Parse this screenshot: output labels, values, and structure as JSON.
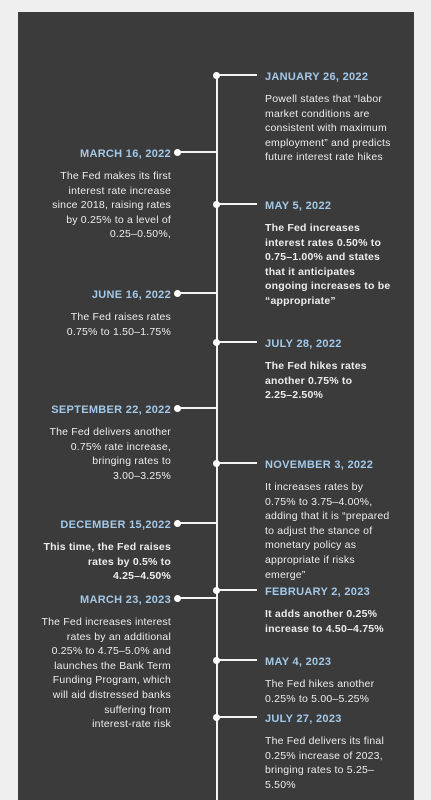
{
  "events": [
    {
      "side": "right",
      "bold": false,
      "date": "JANUARY 26, 2022",
      "lines": [
        "Powell states that “labor",
        "market conditions are",
        "consistent with maximum",
        "employment” and predicts",
        "future interest rate hikes"
      ]
    },
    {
      "side": "left",
      "bold": false,
      "date": "MARCH 16, 2022",
      "lines": [
        "The Fed makes its first",
        "interest rate increase",
        "since 2018, raising rates",
        "by 0.25% to a level of",
        "0.25–0.50%,"
      ]
    },
    {
      "side": "right",
      "bold": true,
      "date": "MAY 5, 2022",
      "lines": [
        "The Fed increases",
        "interest rates 0.50% to",
        "0.75–1.00% and states",
        "that it anticipates",
        "ongoing increases to be",
        "“appropriate”"
      ]
    },
    {
      "side": "left",
      "bold": false,
      "date": "JUNE 16, 2022",
      "lines": [
        "The Fed raises rates",
        "0.75% to 1.50–1.75%"
      ]
    },
    {
      "side": "right",
      "bold": true,
      "date": "JULY 28, 2022",
      "lines": [
        "The Fed hikes rates",
        "another 0.75% to",
        "2.25–2.50%"
      ]
    },
    {
      "side": "left",
      "bold": false,
      "date": "SEPTEMBER 22,  2022",
      "lines": [
        "The Fed delivers another",
        "0.75% rate increase,",
        "bringing rates to",
        "3.00–3.25%"
      ]
    },
    {
      "side": "right",
      "bold": false,
      "date": "NOVEMBER 3, 2022",
      "lines": [
        "It increases rates by",
        "0.75% to 3.75–4.00%,",
        "adding that it is “prepared",
        "to adjust the stance of",
        "monetary policy as",
        "appropriate if risks",
        "emerge”"
      ]
    },
    {
      "side": "left",
      "bold": true,
      "date": "DECEMBER 15,2022",
      "lines": [
        "This time, the Fed raises",
        "rates by 0.5% to",
        "4.25–4.50%"
      ]
    },
    {
      "side": "right",
      "bold": true,
      "date": "FEBRUARY 2, 2023",
      "lines": [
        "It adds another 0.25%",
        "increase to 4.50–4.75%"
      ]
    },
    {
      "side": "left",
      "bold": false,
      "date": "MARCH 23, 2023",
      "lines": [
        "The Fed increases interest",
        "rates by an additional",
        "0.25% to 4.75–5.0% and",
        "launches the Bank Term",
        "Funding Program, which",
        "will aid distressed banks",
        "suffering from",
        "interest-rate risk"
      ]
    },
    {
      "side": "right",
      "bold": false,
      "date": "MAY 4, 2023",
      "lines": [
        "The Fed hikes another",
        "0.25% to 5.00–5.25%"
      ]
    },
    {
      "side": "right",
      "bold": false,
      "date": "JULY 27, 2023",
      "lines": [
        "The Fed delivers its final",
        "0.25% increase of 2023,",
        "bringing rates to 5.25–",
        "5.50%"
      ]
    }
  ]
}
